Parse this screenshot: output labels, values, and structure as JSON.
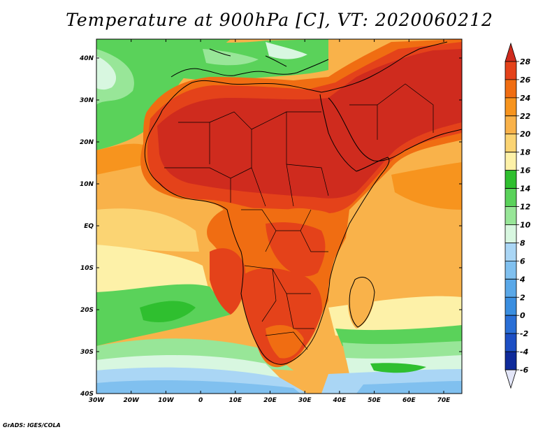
{
  "title": "Temperature at 900hPa [C], VT: 2020060212",
  "credit": "GrADS: IGES/COLA",
  "map": {
    "lat_labels": [
      "40N",
      "30N",
      "20N",
      "10N",
      "EQ",
      "10S",
      "20S",
      "30S",
      "40S"
    ],
    "lon_labels": [
      "30W",
      "20W",
      "10W",
      "0",
      "10E",
      "20E",
      "30E",
      "40E",
      "50E",
      "60E",
      "70E"
    ]
  },
  "colorbar": {
    "levels": [
      "28",
      "26",
      "24",
      "22",
      "20",
      "18",
      "16",
      "14",
      "12",
      "10",
      "8",
      "6",
      "4",
      "2",
      "0",
      "-2",
      "-4",
      "-6"
    ],
    "colors": [
      "#cf2b1e",
      "#e4421a",
      "#f06d12",
      "#f7941e",
      "#f9b24a",
      "#fbd473",
      "#fdf1a8",
      "#2fbf2f",
      "#5ad25a",
      "#98e698",
      "#d8f7e0",
      "#aad6f5",
      "#80c0ef",
      "#5aa8e8",
      "#3a8ee0",
      "#2a6fd6",
      "#1d4fc4",
      "#0f2a9a",
      "#e3e6f8"
    ]
  }
}
